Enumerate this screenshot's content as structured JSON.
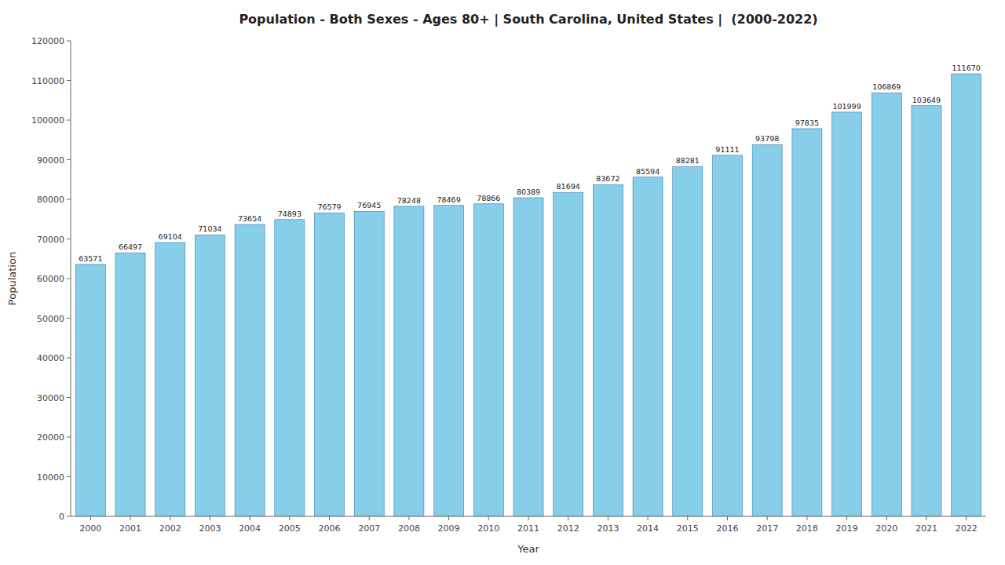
{
  "chart_data": {
    "type": "bar",
    "title": "Population - Both Sexes - Ages 80+ | South Carolina, United States |  (2000-2022)",
    "xlabel": "Year",
    "ylabel": "Population",
    "categories": [
      "2000",
      "2001",
      "2002",
      "2003",
      "2004",
      "2005",
      "2006",
      "2007",
      "2008",
      "2009",
      "2010",
      "2011",
      "2012",
      "2013",
      "2014",
      "2015",
      "2016",
      "2017",
      "2018",
      "2019",
      "2020",
      "2021",
      "2022"
    ],
    "values": [
      63571,
      66497,
      69104,
      71034,
      73654,
      74893,
      76579,
      76945,
      78248,
      78469,
      78866,
      80389,
      81694,
      83672,
      85594,
      88281,
      91111,
      93798,
      97835,
      101999,
      106869,
      103649,
      111670
    ],
    "color": "#87CEEB",
    "ylim": [
      0,
      120000
    ],
    "yticks": [
      0,
      10000,
      20000,
      30000,
      40000,
      50000,
      60000,
      70000,
      80000,
      90000,
      100000,
      110000,
      120000
    ],
    "grid": false,
    "data_labels": true
  }
}
